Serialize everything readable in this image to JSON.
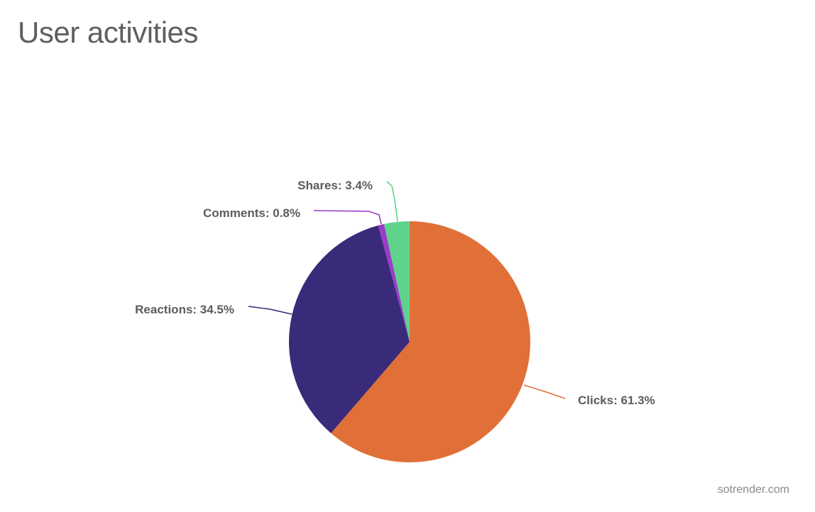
{
  "header": {
    "title": "User activities"
  },
  "footer": {
    "brand": "sotrender.com"
  },
  "chart_data": {
    "type": "pie",
    "title": "User activities",
    "slices": [
      {
        "name": "Clicks",
        "value": 61.3,
        "label": "Clicks: 61.3%",
        "color": "#e07038"
      },
      {
        "name": "Reactions",
        "value": 34.5,
        "label": "Reactions: 34.5%",
        "color": "#3a2a7a"
      },
      {
        "name": "Comments",
        "value": 0.8,
        "label": "Comments: 0.8%",
        "color": "#9b3cc8"
      },
      {
        "name": "Shares",
        "value": 3.4,
        "label": "Shares: 3.4%",
        "color": "#5fd38c"
      }
    ]
  }
}
